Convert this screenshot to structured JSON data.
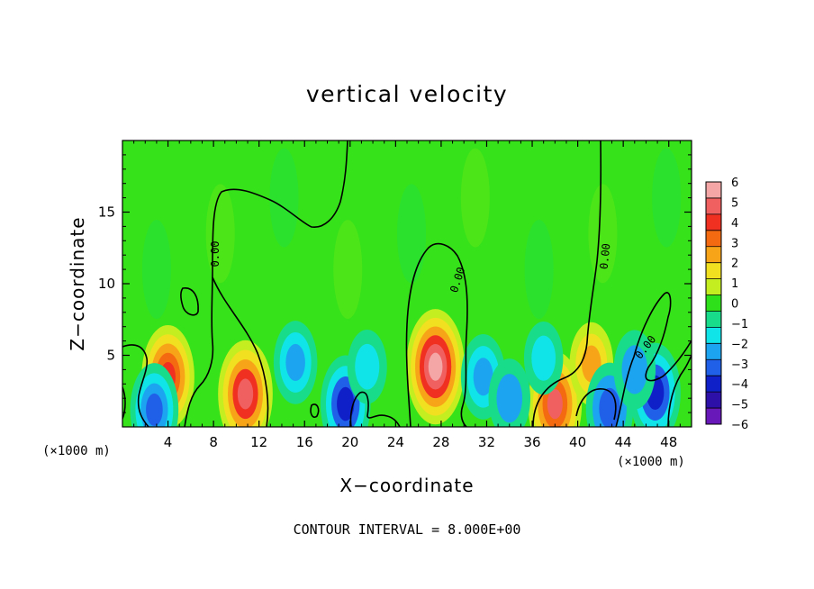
{
  "chart_data": {
    "type": "heatmap",
    "title": "vertical velocity",
    "xlabel": "X−coordinate",
    "ylabel": "Z−coordinate",
    "x_unit_left": "(×1000 m)",
    "x_unit_right": "(×1000 m)",
    "footer": "CONTOUR INTERVAL = 8.000E+00",
    "xlim": [
      0,
      50
    ],
    "ylim": [
      0,
      20
    ],
    "x_ticks": [
      "4",
      "8",
      "12",
      "16",
      "20",
      "24",
      "28",
      "32",
      "36",
      "40",
      "44",
      "48"
    ],
    "x_tick_values": [
      4,
      8,
      12,
      16,
      20,
      24,
      28,
      32,
      36,
      40,
      44,
      48
    ],
    "y_ticks": [
      "5",
      "10",
      "15"
    ],
    "y_tick_values": [
      5,
      10,
      15
    ],
    "colorbar": {
      "labels": [
        "6",
        "5",
        "4",
        "3",
        "2",
        "1",
        "0",
        "−1",
        "−2",
        "−3",
        "−4",
        "−5",
        "−6"
      ],
      "colors": [
        "#f4a6a6",
        "#f06060",
        "#f03020",
        "#f46a10",
        "#f8a418",
        "#f0e020",
        "#c4ee20",
        "#2ee01a",
        "#18dc8a",
        "#10e4e8",
        "#1ca4f0",
        "#2060e8",
        "#1020c8",
        "#2c10a8",
        "#6818b8"
      ]
    },
    "contour_label": "0.00",
    "features": [
      {
        "x": 4.0,
        "z": 3.5,
        "w": 4.6
      },
      {
        "x": 10.8,
        "z": 2.3,
        "w": 5.0
      },
      {
        "x": 27.5,
        "z": 4.2,
        "w": 5.8
      },
      {
        "x": 38.0,
        "z": 1.6,
        "w": 4.8
      },
      {
        "x": 41.2,
        "z": 4.4,
        "w": 2.6
      },
      {
        "x": 2.8,
        "z": 1.2,
        "w": -3.6
      },
      {
        "x": 15.2,
        "z": 4.5,
        "w": -2.6
      },
      {
        "x": 19.6,
        "z": 1.6,
        "w": -4.0
      },
      {
        "x": 31.7,
        "z": 3.5,
        "w": -2.8
      },
      {
        "x": 34.0,
        "z": 2.0,
        "w": -2.2
      },
      {
        "x": 42.8,
        "z": 1.3,
        "w": -3.4
      },
      {
        "x": 46.8,
        "z": 2.4,
        "w": -4.2
      },
      {
        "x": 45.0,
        "z": 4.0,
        "w": -2.2
      },
      {
        "x": 21.5,
        "z": 4.2,
        "w": -1.7
      },
      {
        "x": 37.0,
        "z": 4.8,
        "w": -1.6
      }
    ]
  }
}
